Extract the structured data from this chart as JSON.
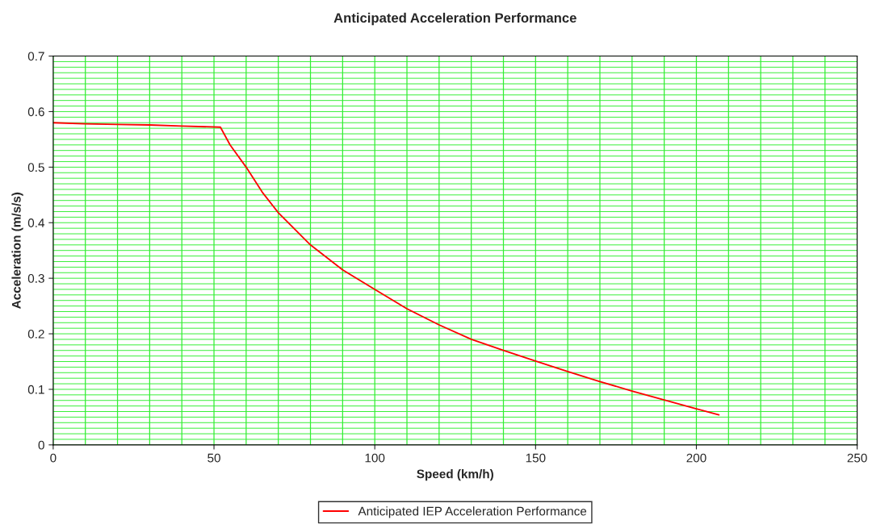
{
  "chart_data": {
    "type": "line",
    "title": "Anticipated Acceleration Performance",
    "xlabel": "Speed (km/h)",
    "ylabel": "Acceleration (m/s/s)",
    "x": [
      0,
      10,
      20,
      30,
      40,
      52,
      55,
      60,
      65,
      70,
      80,
      90,
      100,
      110,
      120,
      130,
      140,
      150,
      160,
      170,
      180,
      190,
      200,
      207
    ],
    "series": [
      {
        "name": "Anticipated IEP Acceleration Performance",
        "color": "#ff0000",
        "values": [
          0.58,
          0.578,
          0.577,
          0.576,
          0.574,
          0.572,
          0.54,
          0.5,
          0.455,
          0.418,
          0.36,
          0.315,
          0.28,
          0.245,
          0.216,
          0.19,
          0.17,
          0.151,
          0.132,
          0.114,
          0.097,
          0.081,
          0.065,
          0.054
        ]
      }
    ],
    "xlim": [
      0,
      250
    ],
    "xticks": [
      0,
      50,
      100,
      150,
      200,
      250
    ],
    "ylim": [
      0,
      0.7
    ],
    "yticks": [
      0,
      0.1,
      0.2,
      0.3,
      0.4,
      0.5,
      0.6,
      0.7
    ],
    "grid": true,
    "legend": "bottom",
    "line_style": "solid",
    "marker": "none"
  }
}
